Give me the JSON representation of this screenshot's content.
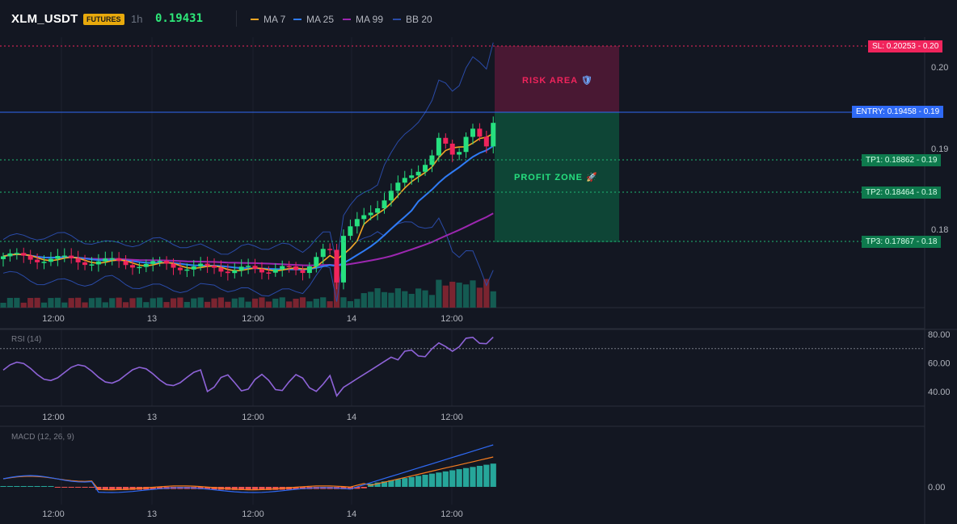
{
  "header": {
    "symbol": "XLM_USDT",
    "badge": "FUTURES",
    "timeframe": "1h",
    "last_price": "0.19431",
    "legend": [
      {
        "label": "MA 7",
        "color": "#f5a623"
      },
      {
        "label": "MA 25",
        "color": "#2f7bf5"
      },
      {
        "label": "MA 99",
        "color": "#9c27b0"
      },
      {
        "label": "BB 20",
        "color": "#2a4ba8"
      }
    ]
  },
  "colors": {
    "bull": "#26e07f",
    "bear": "#f0245c",
    "vol_bull": "#145b52",
    "vol_bear": "#7a2430",
    "sl": "#f0245c",
    "entry": "#2f6af5",
    "tp": "#1fb874",
    "rsi": "#8e63d8",
    "macd": "#2f6af5",
    "signal": "#f57c1f"
  },
  "price_axis": {
    "ticks": [
      "0.20",
      "0.19",
      "0.18"
    ],
    "min": 0.1745,
    "max": 0.2035
  },
  "time_axis": {
    "labels": [
      "12:00",
      "13",
      "12:00",
      "14",
      "12:00"
    ]
  },
  "trade": {
    "sl": {
      "label": "SL: 0.20253",
      "axis": "0.20",
      "price": 0.20253
    },
    "entry": {
      "label": "ENTRY: 0.19458",
      "axis": "0.19",
      "price": 0.19458
    },
    "tps": [
      {
        "label": "TP1: 0.18862",
        "axis": "0.19",
        "price": 0.18862
      },
      {
        "label": "TP2: 0.18464",
        "axis": "0.18",
        "price": 0.18464
      },
      {
        "label": "TP3: 0.17867",
        "axis": "0.18",
        "price": 0.17867
      }
    ],
    "risk_label": "RISK AREA",
    "profit_label": "PROFIT ZONE",
    "risk_icon": "shield-icon",
    "profit_icon": "rocket-icon"
  },
  "rsi": {
    "title": "RSI (14)",
    "ticks": [
      "80.00",
      "60.00",
      "40.00"
    ],
    "overbought": 70
  },
  "macd": {
    "title": "MACD (12, 26, 9)",
    "ticks": [
      "0.00"
    ]
  }
}
